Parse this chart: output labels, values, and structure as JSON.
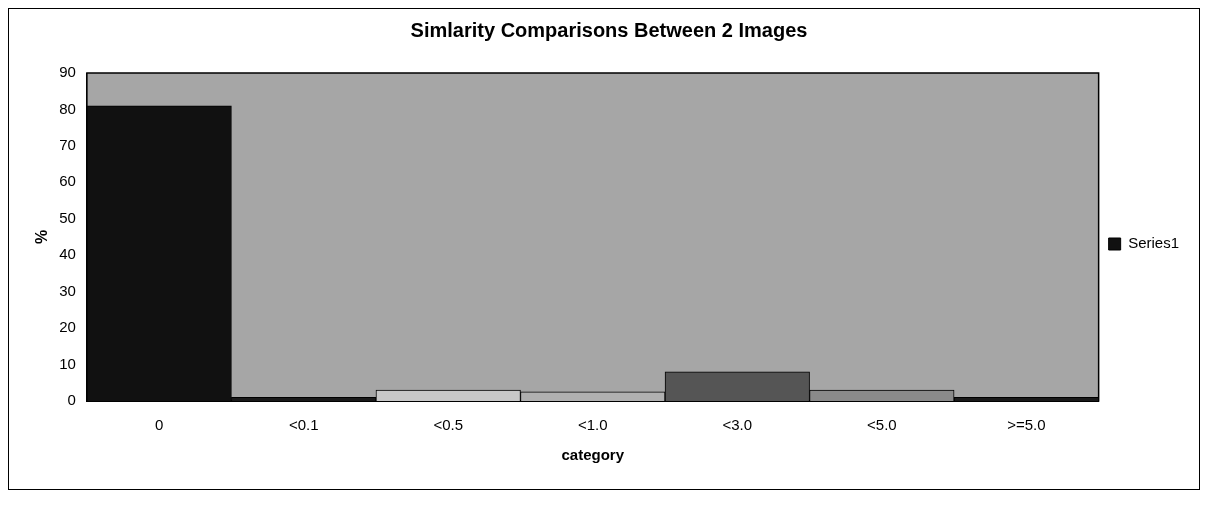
{
  "chart_data": {
    "type": "bar",
    "title": "Simlarity Comparisons Between 2 Images",
    "xlabel": "category",
    "ylabel": "%",
    "categories": [
      "0",
      "<0.1",
      "<0.5",
      "<1.0",
      "<3.0",
      "<5.0",
      ">=5.0"
    ],
    "series": [
      {
        "name": "Series1",
        "colors": [
          "#111111",
          "#1a1a1a",
          "#c8c8c8",
          "#b0b0b0",
          "#555555",
          "#8a8a8a",
          "#1a1a1a"
        ],
        "values": [
          81,
          1,
          3,
          2.5,
          8,
          3,
          1
        ]
      }
    ],
    "ylim": [
      0,
      90
    ],
    "yticks": [
      0,
      10,
      20,
      30,
      40,
      50,
      60,
      70,
      80,
      90
    ],
    "grid": false,
    "legend": "right"
  }
}
